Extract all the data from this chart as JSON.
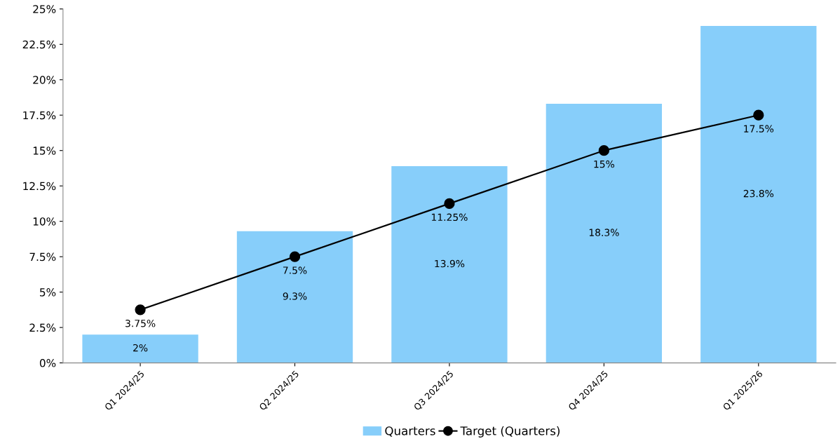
{
  "chart_data": {
    "type": "bar",
    "categories": [
      "Q1 2024/25",
      "Q2 2024/25",
      "Q3 2024/25",
      "Q4 2024/25",
      "Q1 2025/26"
    ],
    "series": [
      {
        "name": "Quarters",
        "color": "#87cefa",
        "values": [
          2,
          9.3,
          13.9,
          18.3,
          23.8
        ],
        "value_labels": [
          "2%",
          "9.3%",
          "13.9%",
          "18.3%",
          "23.8%"
        ]
      },
      {
        "name": "Target (Quarters)",
        "type": "line",
        "color": "#000000",
        "marker": "circle",
        "values": [
          3.75,
          7.5,
          11.25,
          15,
          17.5
        ],
        "value_labels": [
          "3.75%",
          "7.5%",
          "11.25%",
          "15%",
          "17.5%"
        ]
      }
    ],
    "ylim": [
      0,
      25
    ],
    "yticks": [
      {
        "value": 0,
        "label": "0%"
      },
      {
        "value": 2.5,
        "label": "2.5%"
      },
      {
        "value": 5,
        "label": "5%"
      },
      {
        "value": 7.5,
        "label": "7.5%"
      },
      {
        "value": 10,
        "label": "10%"
      },
      {
        "value": 12.5,
        "label": "12.5%"
      },
      {
        "value": 15,
        "label": "15%"
      },
      {
        "value": 17.5,
        "label": "17.5%"
      },
      {
        "value": 20,
        "label": "20%"
      },
      {
        "value": 22.5,
        "label": "22.5%"
      },
      {
        "value": 25,
        "label": "25%"
      }
    ],
    "grid": false,
    "legend": "bottom"
  }
}
